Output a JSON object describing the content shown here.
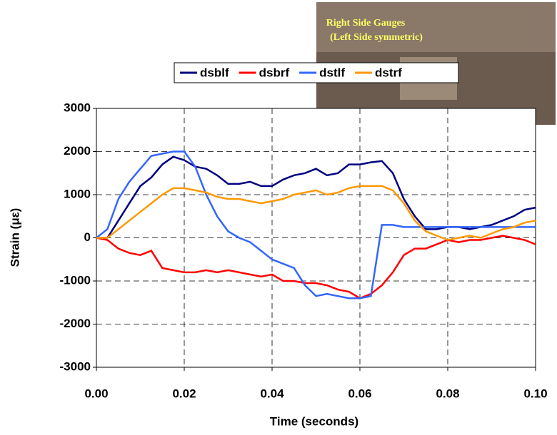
{
  "chart_data": {
    "type": "line",
    "x_label": "Time (seconds)",
    "y_label": "Strain (με)",
    "annotations": [
      "Right Side Gauges",
      "(Left Side symmetric)"
    ],
    "x": [
      0,
      0.0025,
      0.005,
      0.0075,
      0.01,
      0.0125,
      0.015,
      0.0175,
      0.02,
      0.0225,
      0.025,
      0.0275,
      0.03,
      0.0325,
      0.035,
      0.0375,
      0.04,
      0.0425,
      0.045,
      0.0475,
      0.05,
      0.0525,
      0.055,
      0.0575,
      0.06,
      0.0625,
      0.065,
      0.0675,
      0.07,
      0.0725,
      0.075,
      0.0775,
      0.08,
      0.0825,
      0.085,
      0.0875,
      0.09,
      0.0925,
      0.095,
      0.0975,
      0.1
    ],
    "series": [
      {
        "name": "dsblf",
        "color": "#000080",
        "values": [
          0,
          0,
          400,
          800,
          1200,
          1400,
          1700,
          1880,
          1800,
          1650,
          1600,
          1450,
          1250,
          1250,
          1300,
          1200,
          1200,
          1350,
          1450,
          1500,
          1600,
          1450,
          1500,
          1700,
          1700,
          1750,
          1780,
          1500,
          900,
          500,
          200,
          200,
          250,
          250,
          200,
          250,
          300,
          400,
          500,
          650,
          700
        ]
      },
      {
        "name": "dsbrf",
        "color": "#ff0000",
        "values": [
          0,
          -50,
          -250,
          -350,
          -400,
          -300,
          -700,
          -750,
          -800,
          -800,
          -750,
          -800,
          -750,
          -800,
          -850,
          -900,
          -850,
          -1000,
          -1000,
          -1050,
          -1050,
          -1100,
          -1200,
          -1250,
          -1400,
          -1300,
          -1100,
          -800,
          -400,
          -250,
          -250,
          -150,
          -50,
          -100,
          -50,
          -50,
          0,
          50,
          0,
          -50,
          -150
        ]
      },
      {
        "name": "dstlf",
        "color": "#3366ff",
        "values": [
          0,
          200,
          900,
          1300,
          1600,
          1900,
          1950,
          2000,
          2000,
          1650,
          1000,
          500,
          150,
          0,
          -100,
          -300,
          -500,
          -600,
          -700,
          -1100,
          -1350,
          -1300,
          -1350,
          -1400,
          -1400,
          -1350,
          300,
          300,
          250,
          250,
          250,
          250,
          250,
          250,
          250,
          250,
          250,
          250,
          250,
          250,
          250
        ]
      },
      {
        "name": "dstrf",
        "color": "#ff9900",
        "values": [
          0,
          0,
          200,
          400,
          600,
          800,
          1000,
          1150,
          1150,
          1100,
          1050,
          950,
          900,
          900,
          850,
          800,
          850,
          900,
          1000,
          1050,
          1100,
          1000,
          1050,
          1150,
          1200,
          1200,
          1200,
          1100,
          800,
          400,
          150,
          50,
          -50,
          0,
          50,
          0,
          100,
          200,
          250,
          350,
          400
        ]
      }
    ],
    "xlim": [
      0,
      0.1
    ],
    "xticks": [
      {
        "value": 0,
        "label": "0.00"
      },
      {
        "value": 0.02,
        "label": "0.02"
      },
      {
        "value": 0.04,
        "label": "0.04"
      },
      {
        "value": 0.06,
        "label": "0.06"
      },
      {
        "value": 0.08,
        "label": "0.08"
      },
      {
        "value": 0.1,
        "label": "0.10"
      }
    ],
    "ylim": [
      -3000,
      3000
    ],
    "yticks": [
      -3000,
      -2000,
      -1000,
      0,
      1000,
      2000,
      3000
    ],
    "grid": true,
    "legend": "top"
  }
}
